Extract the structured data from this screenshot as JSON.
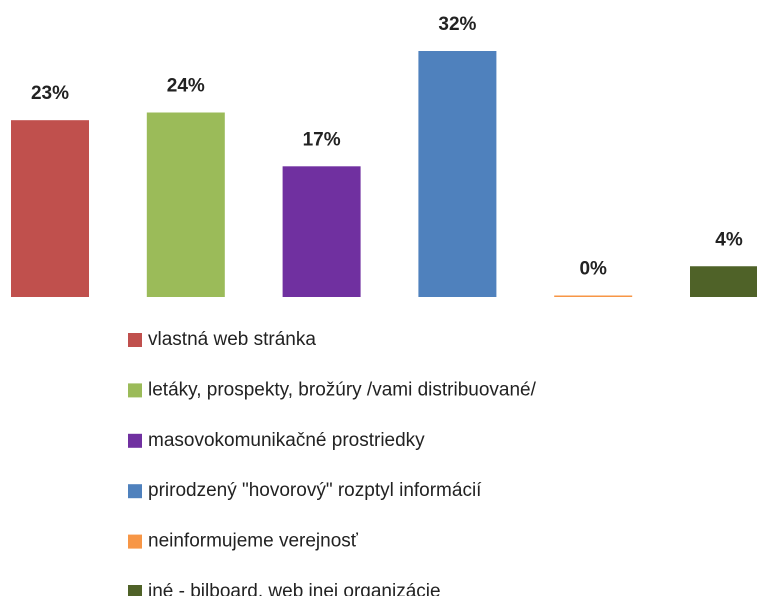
{
  "chart_data": {
    "type": "bar",
    "categories": [
      "vlastná web stránka",
      "letáky, prospekty, brožúry /vami distribuované/",
      "masovokomunikačné prostriedky",
      "prirodzený \"hovorový\" rozptyl informácií",
      "neinformujeme verejnosť",
      "iné - bilboard, web inej organizácie"
    ],
    "values": [
      23,
      24,
      17,
      32,
      0,
      4
    ],
    "value_labels": [
      "23%",
      "24%",
      "17%",
      "32%",
      "0%",
      "4%"
    ],
    "colors": [
      "#c0504d",
      "#9bbb59",
      "#7030a0",
      "#4f81bd",
      "#f79646",
      "#4f6228"
    ]
  }
}
